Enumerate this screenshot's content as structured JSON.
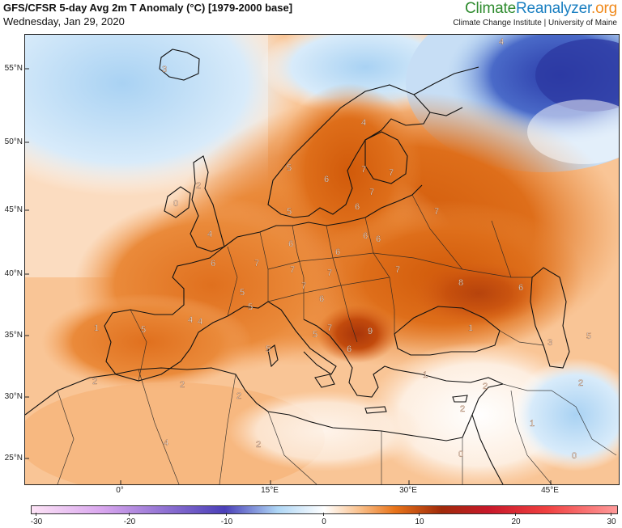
{
  "header": {
    "title": "GFS/CFSR 5-day Avg 2m T Anomaly (°C) [1979-2000 base]",
    "date": "Wednesday, Jan 29, 2020",
    "brand_part1": "Climate",
    "brand_part2": "Reanalyzer",
    "brand_part3": ".org",
    "institute": "Climate Change Institute | University of Maine"
  },
  "axes": {
    "lat_labels": [
      "55°N",
      "50°N",
      "45°N",
      "40°N",
      "35°N",
      "30°N",
      "25°N"
    ],
    "lon_labels": [
      "0°",
      "15°E",
      "30°E",
      "45°E"
    ]
  },
  "colorbar": {
    "ticks": [
      "-30",
      "-20",
      "-10",
      "0",
      "10",
      "20",
      "30"
    ],
    "colors": [
      "#fde3f6",
      "#d9a6ee",
      "#4a3fb8",
      "#aed6f5",
      "#ffffff",
      "#f9c08c",
      "#e8741a",
      "#a02a0a",
      "#c8182a",
      "#f04040",
      "#ff9a9a"
    ]
  },
  "contour_labels": [
    {
      "t": "3"
    },
    {
      "t": "4"
    },
    {
      "t": "4"
    },
    {
      "t": "5"
    },
    {
      "t": "6"
    },
    {
      "t": "7"
    },
    {
      "t": "7"
    },
    {
      "t": "2"
    },
    {
      "t": "0"
    },
    {
      "t": "7"
    },
    {
      "t": "5"
    },
    {
      "t": "6"
    },
    {
      "t": "6"
    },
    {
      "t": "6"
    },
    {
      "t": "4"
    },
    {
      "t": "7"
    },
    {
      "t": "6"
    },
    {
      "t": "6"
    },
    {
      "t": "7"
    },
    {
      "t": "6"
    },
    {
      "t": "7"
    },
    {
      "t": "7"
    },
    {
      "t": "7"
    },
    {
      "t": "7"
    },
    {
      "t": "8"
    },
    {
      "t": "6"
    },
    {
      "t": "5"
    },
    {
      "t": "5"
    },
    {
      "t": "6"
    },
    {
      "t": "1"
    },
    {
      "t": "5"
    },
    {
      "t": "4"
    },
    {
      "t": "5"
    },
    {
      "t": "7"
    },
    {
      "t": "9"
    },
    {
      "t": "1"
    },
    {
      "t": "5"
    },
    {
      "t": "6"
    },
    {
      "t": "3"
    },
    {
      "t": "5"
    },
    {
      "t": "2"
    },
    {
      "t": "2"
    },
    {
      "t": "2"
    },
    {
      "t": "1"
    },
    {
      "t": "2"
    },
    {
      "t": "2"
    },
    {
      "t": "2"
    },
    {
      "t": "4"
    },
    {
      "t": "2"
    },
    {
      "t": "1"
    },
    {
      "t": "0"
    },
    {
      "t": "0"
    },
    {
      "t": "4"
    }
  ]
}
